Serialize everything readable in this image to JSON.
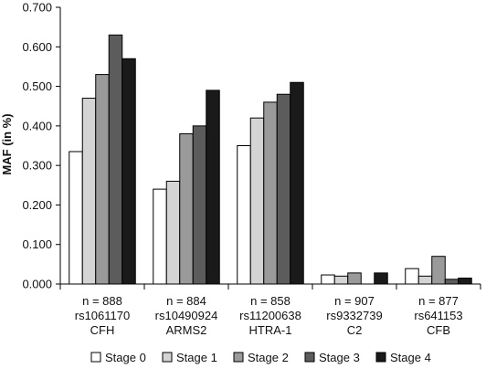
{
  "chart_data": {
    "type": "bar",
    "ylabel": "MAF (in %)",
    "xlabel": "",
    "ylim": [
      0,
      0.7
    ],
    "yticks": [
      "0.000",
      "0.100",
      "0.200",
      "0.300",
      "0.400",
      "0.500",
      "0.600",
      "0.700"
    ],
    "categories": [
      {
        "n": "n = 888",
        "snp": "rs1061170",
        "gene": "CFH"
      },
      {
        "n": "n = 884",
        "snp": "rs10490924",
        "gene": "ARMS2"
      },
      {
        "n": "n = 858",
        "snp": "rs11200638",
        "gene": "HTRA-1"
      },
      {
        "n": "n = 907",
        "snp": "rs9332739",
        "gene": "C2"
      },
      {
        "n": "n = 877",
        "snp": "rs641153",
        "gene": "CFB"
      }
    ],
    "series": [
      {
        "name": "Stage 0",
        "color": "#ffffff",
        "values": [
          0.335,
          0.24,
          0.35,
          0.023,
          0.039
        ]
      },
      {
        "name": "Stage 1",
        "color": "#d4d4d4",
        "values": [
          0.47,
          0.26,
          0.42,
          0.02,
          0.02
        ]
      },
      {
        "name": "Stage 2",
        "color": "#9a9a9a",
        "values": [
          0.53,
          0.38,
          0.46,
          0.028,
          0.07
        ]
      },
      {
        "name": "Stage 3",
        "color": "#5c5c5c",
        "values": [
          0.63,
          0.4,
          0.48,
          0.0,
          0.012
        ]
      },
      {
        "name": "Stage 4",
        "color": "#1a1a1a",
        "values": [
          0.57,
          0.49,
          0.51,
          0.028,
          0.015
        ]
      }
    ],
    "grid": false,
    "legend_position": "bottom"
  }
}
